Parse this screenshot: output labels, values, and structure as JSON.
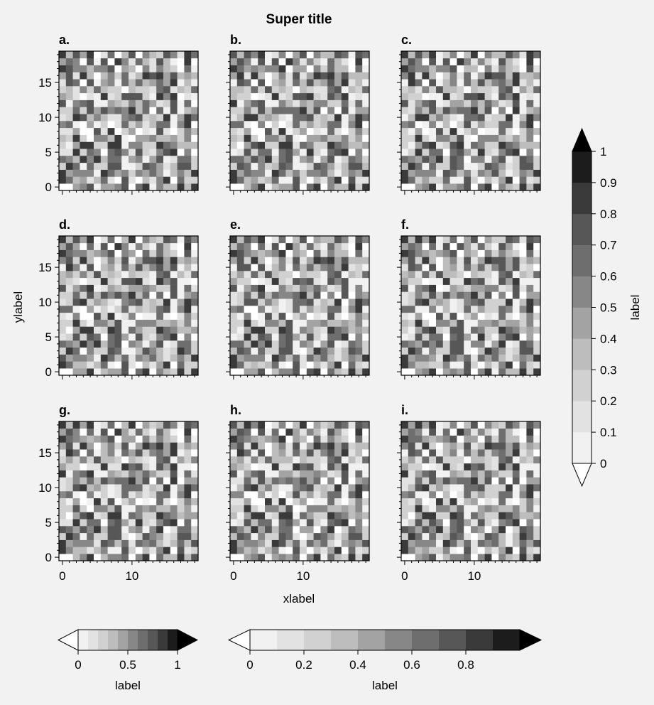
{
  "figure": {
    "suptitle": "Super title",
    "xlabel": "xlabel",
    "ylabel": "ylabel",
    "background": "#f2f2f2"
  },
  "chart_data": [
    {
      "type": "heatmap",
      "panels": [
        {
          "title": "a."
        },
        {
          "title": "b."
        },
        {
          "title": "c."
        },
        {
          "title": "d."
        },
        {
          "title": "e."
        },
        {
          "title": "f."
        },
        {
          "title": "g."
        },
        {
          "title": "h."
        },
        {
          "title": "i."
        }
      ],
      "grid_shape": [
        20,
        20
      ],
      "xlim": [
        -0.5,
        19.5
      ],
      "ylim": [
        -0.5,
        19.5
      ],
      "xticks": [
        0,
        10
      ],
      "xtick_labels": [
        "0",
        "10"
      ],
      "yticks": [
        0,
        5,
        10,
        15
      ],
      "ytick_labels": [
        "0",
        "5",
        "10",
        "15"
      ],
      "colormap": "greys",
      "value_range": [
        0,
        1
      ],
      "levels": [
        0,
        0.1,
        0.2,
        0.3,
        0.4,
        0.5,
        0.6,
        0.7,
        0.8,
        0.9,
        1.0
      ],
      "level_colors": [
        "#ffffff",
        "#f1f1f1",
        "#e2e2e2",
        "#d1d1d1",
        "#bdbdbd",
        "#a3a3a3",
        "#878787",
        "#6e6e6e",
        "#575757",
        "#3a3a3a",
        "#1c1c1c"
      ],
      "extend_colors": [
        "#ffffff",
        "#000000"
      ]
    }
  ],
  "colorbars": {
    "right": {
      "label": "label",
      "orientation": "vertical",
      "placement": "right",
      "ticks": [
        0,
        0.1,
        0.2,
        0.3,
        0.4,
        0.5,
        0.6,
        0.7,
        0.8,
        0.9,
        1
      ],
      "tick_labels": [
        "0",
        "0.1",
        "0.2",
        "0.3",
        "0.4",
        "0.5",
        "0.6",
        "0.7",
        "0.8",
        "0.9",
        "1"
      ]
    },
    "bottom_left": {
      "label": "label",
      "orientation": "horizontal",
      "placement": "bottom-left",
      "ticks": [
        0,
        0.5,
        1
      ],
      "tick_labels": [
        "0",
        "0.5",
        "1"
      ]
    },
    "bottom_right": {
      "label": "label",
      "orientation": "horizontal",
      "placement": "bottom-right",
      "ticks": [
        0,
        0.2,
        0.4,
        0.6,
        0.8
      ],
      "tick_labels": [
        "0",
        "0.2",
        "0.4",
        "0.6",
        "0.8"
      ]
    }
  }
}
